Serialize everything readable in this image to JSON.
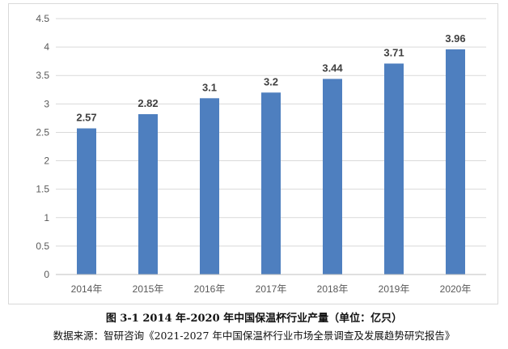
{
  "caption": "图 3-1 2014 年-2020 年中国保温杯行业产量（单位：亿只）",
  "source": "数据来源：智研咨询《2021-2027 年中国保温杯行业市场全景调查及发展趋势研究报告》",
  "colors": {
    "bar": "#4e7fbf",
    "grid": "#d9d9d9",
    "axis": "#bfbfbf",
    "tick_text": "#595959",
    "label_text": "#404040"
  },
  "chart_data": {
    "type": "bar",
    "categories": [
      "2014年",
      "2015年",
      "2016年",
      "2017年",
      "2018年",
      "2019年",
      "2020年"
    ],
    "values": [
      2.57,
      2.82,
      3.1,
      3.2,
      3.44,
      3.71,
      3.96
    ],
    "value_labels": [
      "2.57",
      "2.82",
      "3.1",
      "3.2",
      "3.44",
      "3.71",
      "3.96"
    ],
    "yticks": [
      "0",
      "0.5",
      "1",
      "1.5",
      "2",
      "2.5",
      "3",
      "3.5",
      "4",
      "4.5"
    ],
    "ylim": [
      0,
      4.5
    ],
    "grid": true,
    "legend": "none",
    "title": "",
    "xlabel": "",
    "ylabel": ""
  }
}
